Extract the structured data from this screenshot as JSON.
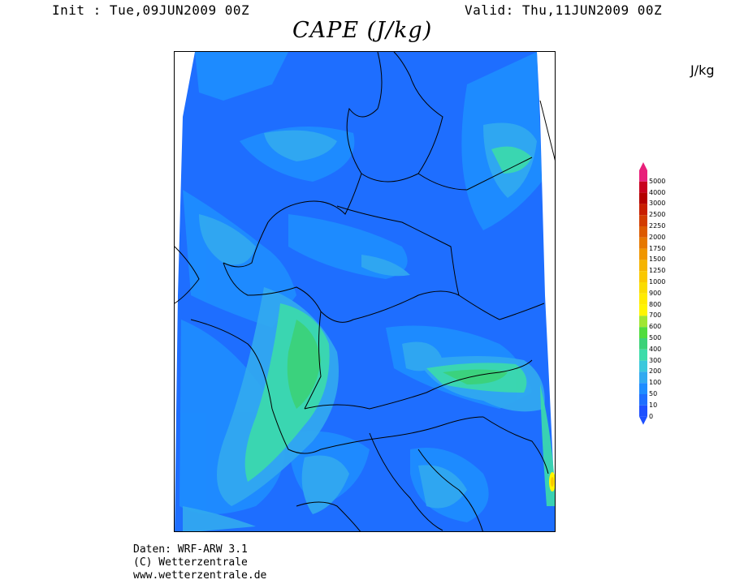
{
  "header": {
    "init": "Init : Tue,09JUN2009 00Z",
    "valid": "Valid: Thu,11JUN2009 00Z",
    "title": "CAPE (J/kg)",
    "unit": "J/kg"
  },
  "legend": {
    "unit": "J/kg",
    "levels": [
      "5000",
      "4000",
      "3000",
      "2500",
      "2250",
      "2000",
      "1750",
      "1500",
      "1250",
      "1000",
      "900",
      "800",
      "700",
      "600",
      "500",
      "400",
      "300",
      "200",
      "100",
      "50",
      "10",
      "0"
    ],
    "colors": [
      "#e8207a",
      "#c8001e",
      "#b40000",
      "#c81e00",
      "#d23c00",
      "#dc5a00",
      "#e67800",
      "#f09600",
      "#f5b400",
      "#fac800",
      "#fadc00",
      "#ffeb00",
      "#fff500",
      "#a0e632",
      "#50dc3c",
      "#3cd278",
      "#3cdcaa",
      "#3cc8dc",
      "#32aaf0",
      "#1e8cff",
      "#1e6eff",
      "#1e50ff"
    ]
  },
  "footer": {
    "line1": "Daten: WRF-ARW 3.1",
    "line2": "(C) Wetterzentrale",
    "line3": "www.wetterzentrale.de"
  }
}
